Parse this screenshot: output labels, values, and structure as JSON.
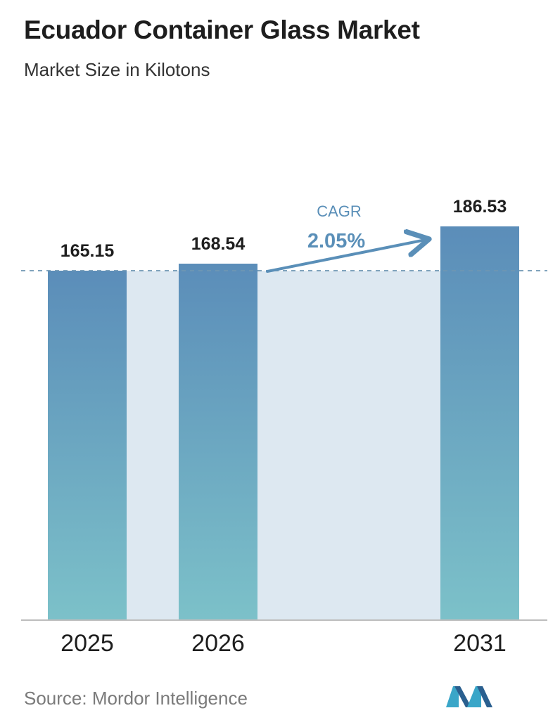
{
  "header": {
    "title": "Ecuador Container Glass Market",
    "subtitle": "Market Size in Kilotons"
  },
  "chart_data": {
    "type": "bar",
    "title": "Ecuador Container Glass Market",
    "subtitle": "Market Size in Kilotons",
    "categories": [
      "2025",
      "2026",
      "2031"
    ],
    "values": [
      165.15,
      168.54,
      186.53
    ],
    "value_labels": [
      "165.15",
      "168.54",
      "186.53"
    ],
    "xlabel": "",
    "ylabel": "",
    "annotation": {
      "label": "CAGR",
      "value": "2.05%"
    },
    "grid": false
  },
  "footer": {
    "source": "Source:  Mordor Intelligence",
    "logo_icon": "mordor-intelligence-logo-icon"
  },
  "colors": {
    "bar_top": "#5b8db9",
    "bar_bottom": "#7cc1c9",
    "band": "#dde8f1",
    "arrow": "#5a8fb8",
    "dashed": "#6f96b3"
  }
}
